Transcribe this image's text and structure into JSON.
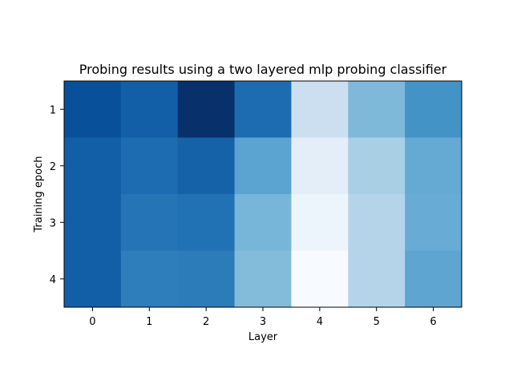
{
  "chart_data": {
    "type": "heatmap",
    "title": "Probing results using a two layered mlp probing classifier",
    "xlabel": "Layer",
    "ylabel": "Training epoch",
    "x_categories": [
      "0",
      "1",
      "2",
      "3",
      "4",
      "5",
      "6"
    ],
    "y_categories": [
      "1",
      "2",
      "3",
      "4"
    ],
    "colormap": "Blues",
    "colors": {
      "low": "#f7fbff",
      "high": "#08306b"
    },
    "values": [
      [
        0.88,
        0.82,
        1.0,
        0.77,
        0.22,
        0.45,
        0.62
      ],
      [
        0.82,
        0.77,
        0.81,
        0.55,
        0.1,
        0.34,
        0.52
      ],
      [
        0.82,
        0.74,
        0.75,
        0.47,
        0.05,
        0.3,
        0.51
      ],
      [
        0.82,
        0.7,
        0.71,
        0.44,
        0.0,
        0.3,
        0.54
      ]
    ],
    "value_range": [
      0,
      1
    ],
    "grid": false,
    "colorbar": false
  }
}
